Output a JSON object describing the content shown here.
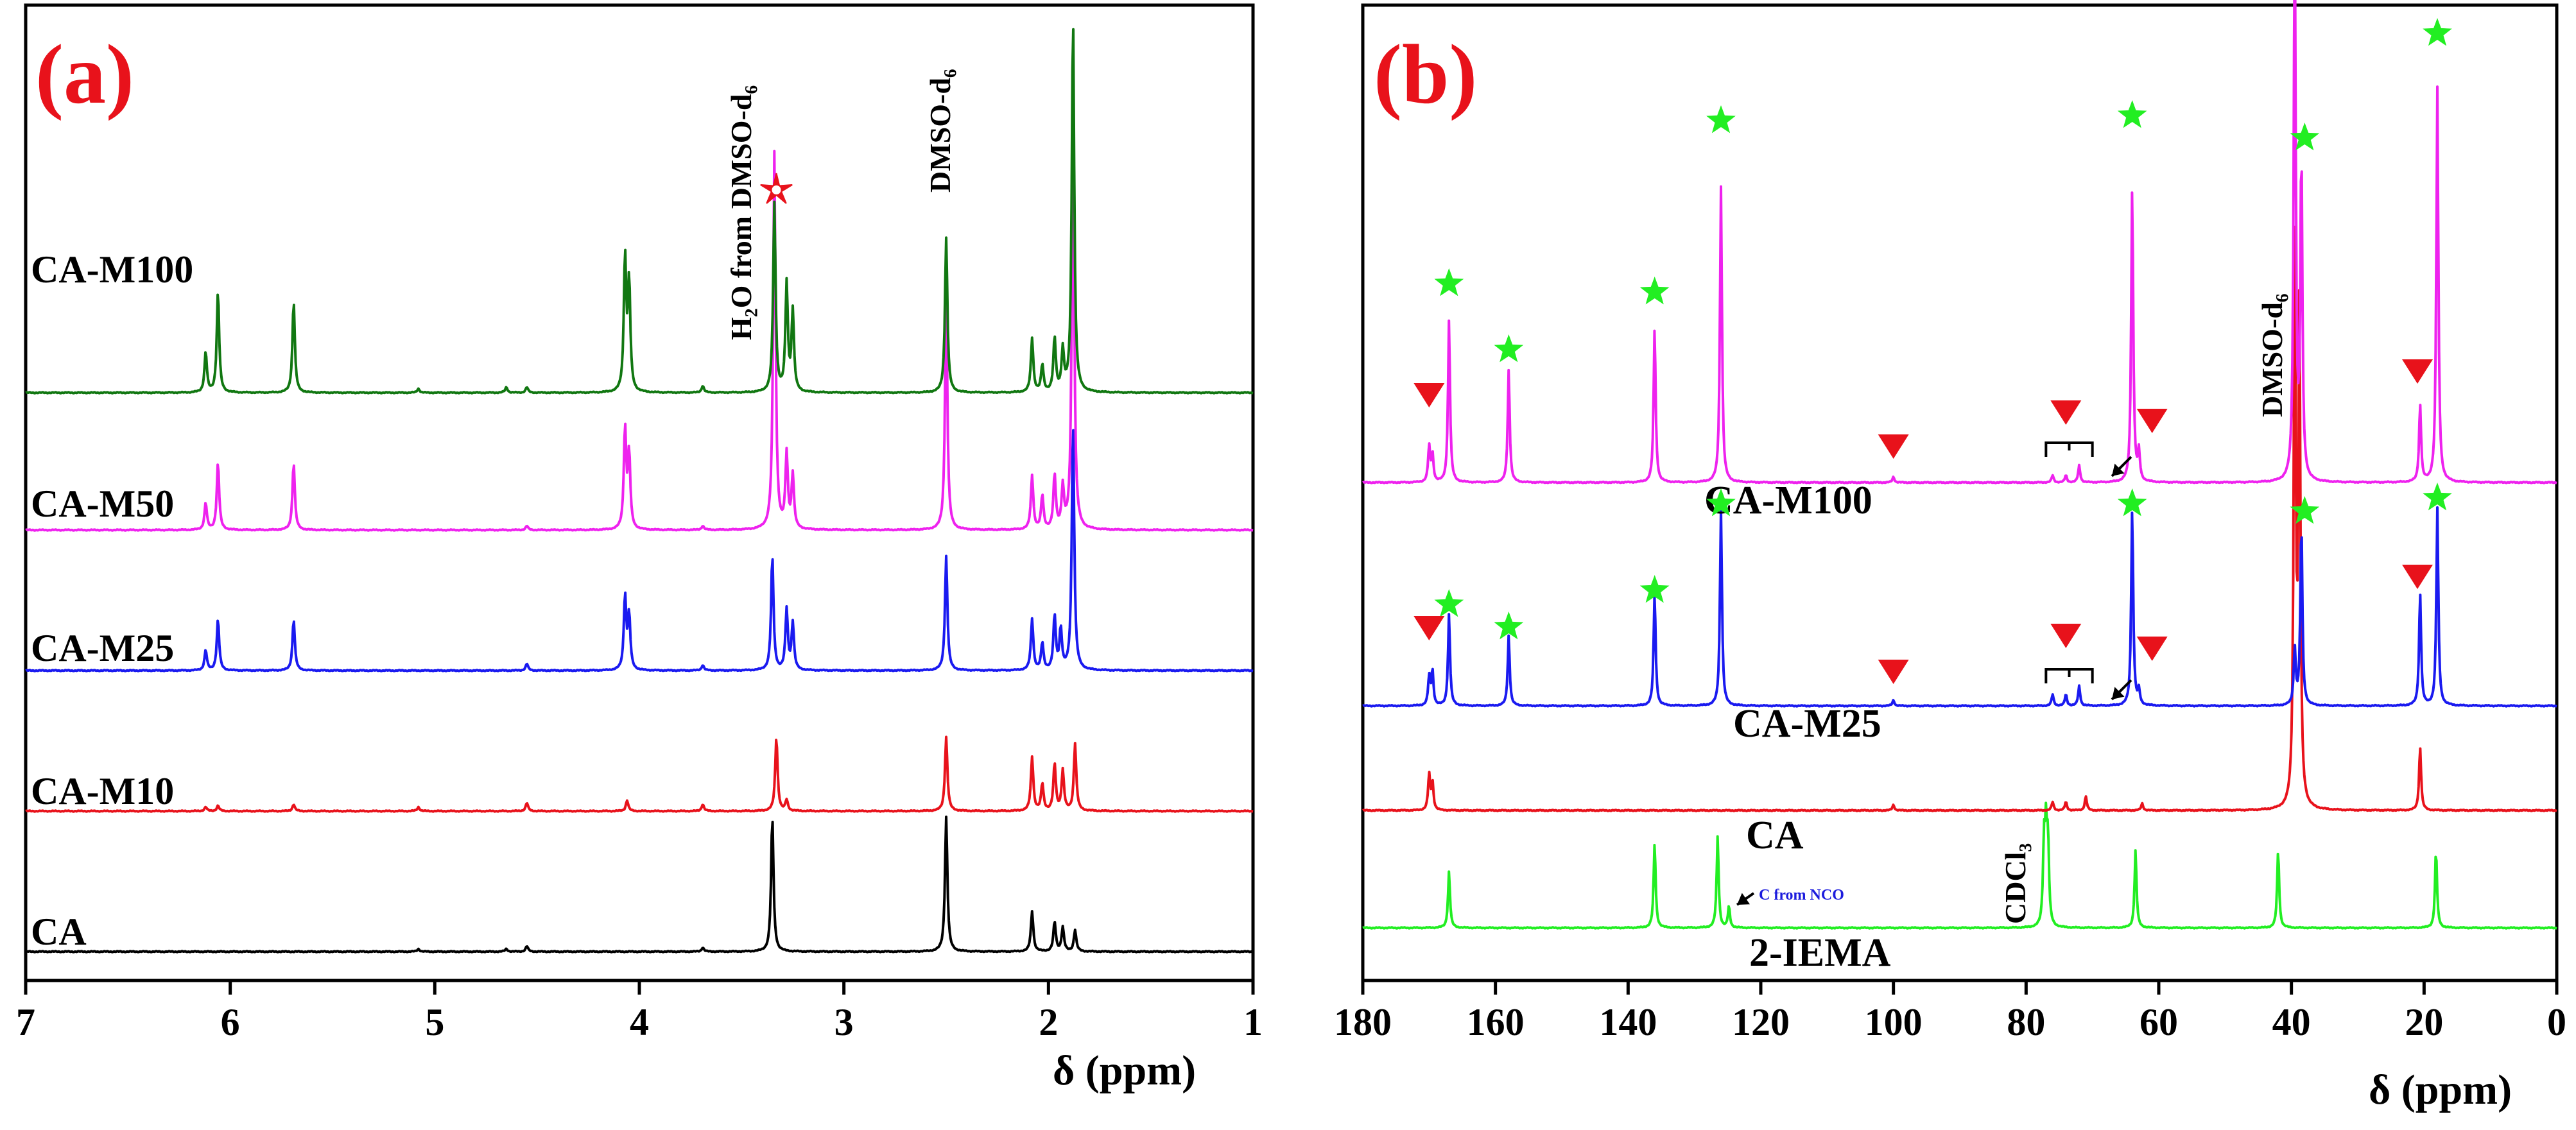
{
  "chart_data": [
    {
      "panel_label": "(a)",
      "type": "line",
      "xlabel": "δ (ppm)",
      "xlim": [
        7,
        1
      ],
      "x_reversed": true,
      "xticks": [
        7,
        6,
        5,
        4,
        3,
        2,
        1
      ],
      "y_axis_shown": false,
      "annotations": [
        "H₂O from DMSO-d₆",
        "DMSO-d₆"
      ],
      "marked_peak_ppm": 3.33,
      "series": [
        {
          "name": "CA",
          "color": "#000000",
          "peaks": [
            [
              5.08,
              0.02
            ],
            [
              4.65,
              0.02
            ],
            [
              4.55,
              0.04
            ],
            [
              3.69,
              0.03
            ],
            [
              3.35,
              1.0
            ],
            [
              2.5,
              1.0
            ],
            [
              2.08,
              0.3
            ],
            [
              1.97,
              0.22
            ],
            [
              1.93,
              0.18
            ],
            [
              1.87,
              0.16
            ]
          ]
        },
        {
          "name": "CA-M10",
          "color": "#e8121b",
          "peaks": [
            [
              6.12,
              0.03
            ],
            [
              6.06,
              0.04
            ],
            [
              5.69,
              0.05
            ],
            [
              5.08,
              0.03
            ],
            [
              4.55,
              0.06
            ],
            [
              4.06,
              0.08
            ],
            [
              3.69,
              0.05
            ],
            [
              3.33,
              0.55
            ],
            [
              3.28,
              0.08
            ],
            [
              2.5,
              0.55
            ],
            [
              2.08,
              0.4
            ],
            [
              2.03,
              0.2
            ],
            [
              1.97,
              0.35
            ],
            [
              1.93,
              0.3
            ],
            [
              1.87,
              0.5
            ]
          ]
        },
        {
          "name": "CA-M25",
          "color": "#1a1af0",
          "peaks": [
            [
              6.12,
              0.15
            ],
            [
              6.06,
              0.38
            ],
            [
              5.69,
              0.38
            ],
            [
              4.55,
              0.05
            ],
            [
              4.07,
              0.55
            ],
            [
              4.05,
              0.4
            ],
            [
              3.69,
              0.04
            ],
            [
              3.35,
              0.85
            ],
            [
              3.28,
              0.45
            ],
            [
              3.25,
              0.35
            ],
            [
              2.5,
              0.85
            ],
            [
              2.08,
              0.38
            ],
            [
              2.03,
              0.2
            ],
            [
              1.97,
              0.4
            ],
            [
              1.94,
              0.3
            ],
            [
              1.88,
              1.85
            ]
          ]
        },
        {
          "name": "CA-M50",
          "color": "#ee22ee",
          "peaks": [
            [
              6.12,
              0.2
            ],
            [
              6.06,
              0.5
            ],
            [
              5.69,
              0.5
            ],
            [
              4.55,
              0.03
            ],
            [
              4.07,
              0.75
            ],
            [
              4.05,
              0.55
            ],
            [
              3.69,
              0.03
            ],
            [
              3.34,
              2.8
            ],
            [
              3.28,
              0.55
            ],
            [
              3.25,
              0.4
            ],
            [
              2.5,
              1.7
            ],
            [
              2.08,
              0.4
            ],
            [
              2.03,
              0.25
            ],
            [
              1.97,
              0.4
            ],
            [
              1.93,
              0.3
            ],
            [
              1.88,
              3.0
            ]
          ]
        },
        {
          "name": "CA-M100",
          "color": "#117711",
          "peaks": [
            [
              6.12,
              0.3
            ],
            [
              6.06,
              0.75
            ],
            [
              5.69,
              0.68
            ],
            [
              5.08,
              0.03
            ],
            [
              4.65,
              0.04
            ],
            [
              4.55,
              0.04
            ],
            [
              3.69,
              0.05
            ],
            [
              4.07,
              1.0
            ],
            [
              4.05,
              0.8
            ],
            [
              3.34,
              1.4
            ],
            [
              3.28,
              0.8
            ],
            [
              3.25,
              0.6
            ],
            [
              2.5,
              1.15
            ],
            [
              2.08,
              0.4
            ],
            [
              2.03,
              0.2
            ],
            [
              1.97,
              0.4
            ],
            [
              1.93,
              0.3
            ],
            [
              1.88,
              2.8
            ]
          ]
        }
      ]
    },
    {
      "panel_label": "(b)",
      "type": "line",
      "xlabel": "δ (ppm)",
      "xlim": [
        180,
        0
      ],
      "x_reversed": true,
      "xticks": [
        180,
        160,
        140,
        120,
        100,
        80,
        60,
        40,
        20,
        0
      ],
      "y_axis_shown": false,
      "annotations": [
        "DMSO-d₆",
        "CDCl₃",
        "C from NCO"
      ],
      "star_peaks_ppm": [
        167,
        158,
        136,
        126,
        64,
        38,
        18
      ],
      "triangle_peaks_ppm": [
        170,
        100,
        74,
        61,
        21
      ],
      "series": [
        {
          "name": "2-IEMA",
          "color": "#22ee22",
          "peaks": [
            [
              167,
              0.4
            ],
            [
              136,
              0.6
            ],
            [
              126.5,
              0.65
            ],
            [
              124.8,
              0.15
            ],
            [
              77.3,
              0.55
            ],
            [
              77.0,
              0.6
            ],
            [
              76.7,
              0.55
            ],
            [
              63.5,
              0.55
            ],
            [
              42.0,
              0.55
            ],
            [
              18.2,
              0.55
            ]
          ]
        },
        {
          "name": "CA",
          "color": "#e8121b",
          "peaks": [
            [
              170,
              0.25
            ],
            [
              169.5,
              0.2
            ],
            [
              100,
              0.04
            ],
            [
              76,
              0.06
            ],
            [
              74,
              0.06
            ],
            [
              71,
              0.1
            ],
            [
              62.5,
              0.05
            ],
            [
              39.5,
              4.0
            ],
            [
              38.8,
              3.5
            ],
            [
              20.6,
              0.45
            ]
          ]
        },
        {
          "name": "CA-M25",
          "color": "#1a1af0",
          "peaks": [
            [
              170,
              0.2
            ],
            [
              169.5,
              0.25
            ],
            [
              167,
              0.65
            ],
            [
              158,
              0.5
            ],
            [
              136,
              0.8
            ],
            [
              126,
              1.4
            ],
            [
              100,
              0.04
            ],
            [
              76,
              0.08
            ],
            [
              74,
              0.08
            ],
            [
              72,
              0.14
            ],
            [
              64,
              1.4
            ],
            [
              63,
              0.1
            ],
            [
              39.5,
              0.4
            ],
            [
              38.5,
              1.3
            ],
            [
              20.6,
              0.8
            ],
            [
              18,
              1.4
            ]
          ]
        },
        {
          "name": "CA-M100",
          "color": "#ee22ee",
          "peaks": [
            [
              170,
              0.25
            ],
            [
              169.5,
              0.2
            ],
            [
              167,
              1.15
            ],
            [
              158,
              0.8
            ],
            [
              136,
              1.1
            ],
            [
              126,
              2.1
            ],
            [
              100,
              0.04
            ],
            [
              76,
              0.05
            ],
            [
              74,
              0.05
            ],
            [
              72,
              0.12
            ],
            [
              64,
              2.1
            ],
            [
              63,
              0.2
            ],
            [
              39.5,
              4.0
            ],
            [
              38.5,
              2.3
            ],
            [
              20.6,
              0.55
            ],
            [
              18,
              2.8
            ]
          ]
        }
      ]
    }
  ],
  "labels": {
    "panel_a": "(a)",
    "panel_b": "(b)",
    "xlabel_a": "δ (ppm)",
    "xlabel_b": "δ (ppm)",
    "water": "H₂O from DMSO-d₆",
    "dmso_a": "DMSO-d₆",
    "dmso_b": "DMSO-d₆",
    "cdcl3": "CDCl₃",
    "nco": "C from NCO"
  }
}
